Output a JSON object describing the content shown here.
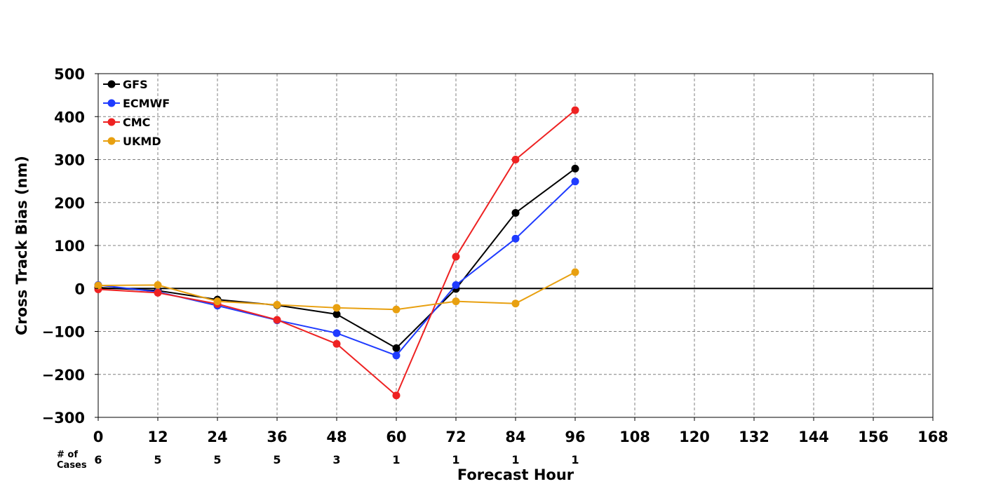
{
  "chart_data": {
    "type": "line",
    "xlabel": "Forecast Hour",
    "ylabel": "Cross Track Bias (nm)",
    "xlim": [
      0,
      168
    ],
    "ylim": [
      -300,
      500
    ],
    "x_ticks": [
      0,
      12,
      24,
      36,
      48,
      60,
      72,
      84,
      96,
      108,
      120,
      132,
      144,
      156,
      168
    ],
    "y_ticks": [
      -300,
      -200,
      -100,
      0,
      100,
      200,
      300,
      400,
      500
    ],
    "y_tick_labels": [
      "−300",
      "−200",
      "−100",
      "0",
      "100",
      "200",
      "300",
      "400",
      "500"
    ],
    "grid": true,
    "legend_position": "top-left",
    "zero_line": true,
    "cases_label": [
      "# of",
      "Cases"
    ],
    "cases": {
      "x": [
        0,
        12,
        24,
        36,
        48,
        60,
        72,
        84,
        96
      ],
      "values": [
        "6",
        "5",
        "5",
        "5",
        "3",
        "1",
        "1",
        "1",
        "1"
      ]
    },
    "series": [
      {
        "name": "GFS",
        "color": "#000000",
        "x": [
          0,
          12,
          24,
          36,
          48,
          60,
          72,
          84,
          96
        ],
        "values": [
          2,
          -5,
          -26,
          -39,
          -60,
          -139,
          -1,
          176,
          279
        ]
      },
      {
        "name": "ECMWF",
        "color": "#1f3bff",
        "x": [
          0,
          12,
          24,
          36,
          48,
          60,
          72,
          84,
          96
        ],
        "values": [
          8,
          -8,
          -40,
          -74,
          -104,
          -156,
          8,
          116,
          249
        ]
      },
      {
        "name": "CMC",
        "color": "#ee2222",
        "x": [
          0,
          12,
          24,
          36,
          48,
          60,
          72,
          84,
          96
        ],
        "values": [
          -2,
          -10,
          -36,
          -73,
          -129,
          -249,
          74,
          300,
          415
        ]
      },
      {
        "name": "UKMD",
        "color": "#e8a010",
        "x": [
          0,
          12,
          24,
          36,
          48,
          60,
          72,
          84,
          96
        ],
        "values": [
          7,
          8,
          -30,
          -38,
          -45,
          -49,
          -30,
          -35,
          38
        ]
      }
    ]
  }
}
